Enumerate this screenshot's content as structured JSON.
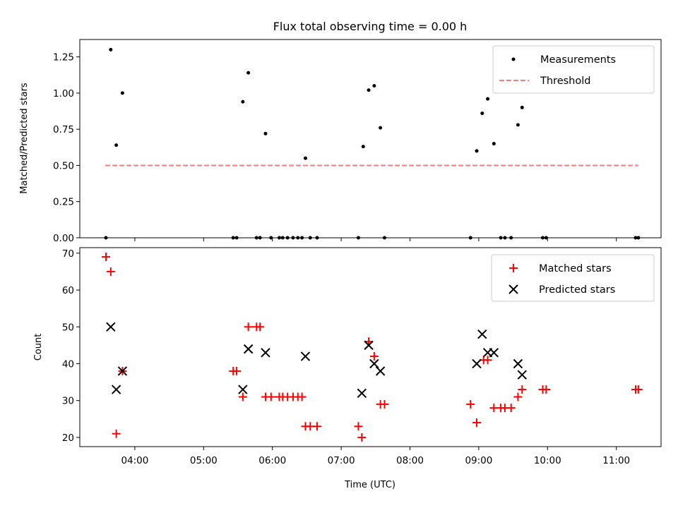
{
  "chart_data": [
    {
      "type": "scatter",
      "title": "Flux total observing time = 0.00 h",
      "xlabel": "",
      "ylabel": "Matched/Predicted stars",
      "xlim": [
        3.2,
        11.65
      ],
      "ylim": [
        0,
        1.37
      ],
      "yticks": [
        0,
        0.25,
        0.5,
        0.75,
        1.0,
        1.25
      ],
      "ytick_labels": [
        "0.00",
        "0.25",
        "0.50",
        "0.75",
        "1.00",
        "1.25"
      ],
      "legend_position": "upper-right",
      "series": [
        {
          "name": "Measurements",
          "marker": "dot",
          "color": "#000000",
          "points": [
            [
              3.58,
              0.0
            ],
            [
              3.65,
              1.3
            ],
            [
              3.73,
              0.64
            ],
            [
              3.82,
              1.0
            ],
            [
              5.43,
              0.0
            ],
            [
              5.48,
              0.0
            ],
            [
              5.57,
              0.94
            ],
            [
              5.65,
              1.14
            ],
            [
              5.77,
              0.0
            ],
            [
              5.82,
              0.0
            ],
            [
              5.9,
              0.72
            ],
            [
              5.98,
              0.0
            ],
            [
              6.1,
              0.0
            ],
            [
              6.15,
              0.0
            ],
            [
              6.22,
              0.0
            ],
            [
              6.3,
              0.0
            ],
            [
              6.37,
              0.0
            ],
            [
              6.43,
              0.0
            ],
            [
              6.48,
              0.55
            ],
            [
              6.55,
              0.0
            ],
            [
              6.65,
              0.0
            ],
            [
              7.25,
              0.0
            ],
            [
              7.32,
              0.63
            ],
            [
              7.4,
              1.02
            ],
            [
              7.48,
              1.05
            ],
            [
              7.57,
              0.76
            ],
            [
              7.63,
              0.0
            ],
            [
              8.88,
              0.0
            ],
            [
              8.97,
              0.6
            ],
            [
              9.05,
              0.86
            ],
            [
              9.13,
              0.96
            ],
            [
              9.22,
              0.65
            ],
            [
              9.32,
              0.0
            ],
            [
              9.38,
              0.0
            ],
            [
              9.47,
              0.0
            ],
            [
              9.57,
              0.78
            ],
            [
              9.63,
              0.9
            ],
            [
              9.93,
              0.0
            ],
            [
              9.98,
              0.0
            ],
            [
              11.28,
              0.0
            ],
            [
              11.32,
              0.0
            ]
          ]
        },
        {
          "name": "Threshold",
          "style": "dashed-line",
          "color": "#ff7b7b",
          "x": [
            3.57,
            11.32
          ],
          "y": [
            0.5,
            0.5
          ]
        }
      ]
    },
    {
      "type": "scatter",
      "title": "",
      "xlabel": "Time (UTC)",
      "ylabel": "Count",
      "xlim": [
        3.2,
        11.65
      ],
      "ylim": [
        17.5,
        71.5
      ],
      "yticks": [
        20,
        30,
        40,
        50,
        60,
        70
      ],
      "ytick_labels": [
        "20",
        "30",
        "40",
        "50",
        "60",
        "70"
      ],
      "xticks": [
        4,
        5,
        6,
        7,
        8,
        9,
        10,
        11
      ],
      "xtick_labels": [
        "04:00",
        "05:00",
        "06:00",
        "07:00",
        "08:00",
        "09:00",
        "10:00",
        "11:00"
      ],
      "legend_position": "upper-right",
      "series": [
        {
          "name": "Matched stars",
          "marker": "plus",
          "color": "#ff0000",
          "points": [
            [
              3.58,
              69
            ],
            [
              3.65,
              65
            ],
            [
              3.73,
              21
            ],
            [
              3.82,
              38
            ],
            [
              5.43,
              38
            ],
            [
              5.48,
              38
            ],
            [
              5.57,
              31
            ],
            [
              5.65,
              50
            ],
            [
              5.77,
              50
            ],
            [
              5.82,
              50
            ],
            [
              5.9,
              31
            ],
            [
              5.98,
              31
            ],
            [
              6.1,
              31
            ],
            [
              6.15,
              31
            ],
            [
              6.22,
              31
            ],
            [
              6.3,
              31
            ],
            [
              6.37,
              31
            ],
            [
              6.43,
              31
            ],
            [
              6.48,
              23
            ],
            [
              6.55,
              23
            ],
            [
              6.65,
              23
            ],
            [
              7.25,
              23
            ],
            [
              7.3,
              20
            ],
            [
              7.4,
              46
            ],
            [
              7.48,
              42
            ],
            [
              7.57,
              29
            ],
            [
              7.63,
              29
            ],
            [
              8.88,
              29
            ],
            [
              8.97,
              24
            ],
            [
              9.07,
              41
            ],
            [
              9.13,
              41
            ],
            [
              9.22,
              28
            ],
            [
              9.32,
              28
            ],
            [
              9.38,
              28
            ],
            [
              9.47,
              28
            ],
            [
              9.57,
              31
            ],
            [
              9.63,
              33
            ],
            [
              9.93,
              33
            ],
            [
              9.98,
              33
            ],
            [
              11.28,
              33
            ],
            [
              11.32,
              33
            ]
          ]
        },
        {
          "name": "Predicted stars",
          "marker": "x",
          "color": "#000000",
          "points": [
            [
              3.65,
              50
            ],
            [
              3.73,
              33
            ],
            [
              3.82,
              38
            ],
            [
              5.57,
              33
            ],
            [
              5.65,
              44
            ],
            [
              5.9,
              43
            ],
            [
              6.48,
              42
            ],
            [
              7.3,
              32
            ],
            [
              7.4,
              45
            ],
            [
              7.48,
              40
            ],
            [
              7.57,
              38
            ],
            [
              8.97,
              40
            ],
            [
              9.05,
              48
            ],
            [
              9.13,
              43
            ],
            [
              9.22,
              43
            ],
            [
              9.57,
              40
            ],
            [
              9.63,
              37
            ]
          ]
        }
      ]
    }
  ]
}
